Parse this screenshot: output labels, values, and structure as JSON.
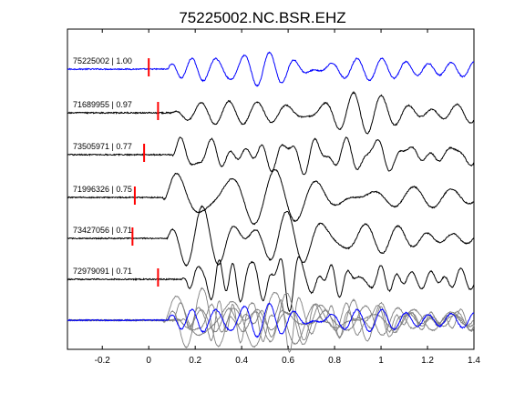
{
  "chart_data": {
    "type": "line",
    "title": "75225002.NC.BSR.EHZ",
    "xlabel": "",
    "ylabel": "",
    "xlim": [
      -0.35,
      1.4
    ],
    "xticks": [
      -0.2,
      0,
      0.2,
      0.4,
      0.6,
      0.8,
      1,
      1.2,
      1.4
    ],
    "xtick_labels": [
      "-0.2",
      "0",
      "0.2",
      "0.4",
      "0.6",
      "0.8",
      "1",
      "1.2",
      "1.4"
    ],
    "yticks_shown": false,
    "grid": false,
    "colors": {
      "reference": "#0000ff",
      "trace": "#000000",
      "overlay": "#808080",
      "pick": "#ff0000"
    },
    "series": [
      {
        "label": "75225002 | 1.00",
        "id": "75225002",
        "cc": 1.0,
        "pick_time": 0.0,
        "color": "#0000ff",
        "onset": 0.08,
        "amp": 1.0,
        "base_period": 0.1,
        "decay": 2.2
      },
      {
        "label": "71689955 | 0.97",
        "id": "71689955",
        "cc": 0.97,
        "pick_time": 0.04,
        "color": "#000000",
        "onset": 0.1,
        "amp": 0.85,
        "base_period": 0.11,
        "decay": 2.4
      },
      {
        "label": "73505971 | 0.77",
        "id": "73505971",
        "cc": 0.77,
        "pick_time": -0.02,
        "color": "#000000",
        "onset": 0.1,
        "amp": 1.0,
        "base_period": 0.12,
        "decay": 1.9
      },
      {
        "label": "71996326 | 0.75",
        "id": "71996326",
        "cc": 0.75,
        "pick_time": -0.06,
        "color": "#000000",
        "onset": 0.06,
        "amp": 1.05,
        "base_period": 0.15,
        "decay": 1.6
      },
      {
        "label": "73427056 | 0.71",
        "id": "73427056",
        "cc": 0.71,
        "pick_time": -0.07,
        "color": "#000000",
        "onset": 0.08,
        "amp": 1.0,
        "base_period": 0.12,
        "decay": 1.4
      },
      {
        "label": "72979091 | 0.71",
        "id": "72979091",
        "cc": 0.71,
        "pick_time": 0.04,
        "color": "#000000",
        "onset": 0.14,
        "amp": 1.0,
        "base_period": 0.07,
        "decay": 1.7
      }
    ],
    "overlay": {
      "description": "all traces superimposed",
      "reference_color": "#0000ff",
      "others_color": "#808080"
    }
  }
}
